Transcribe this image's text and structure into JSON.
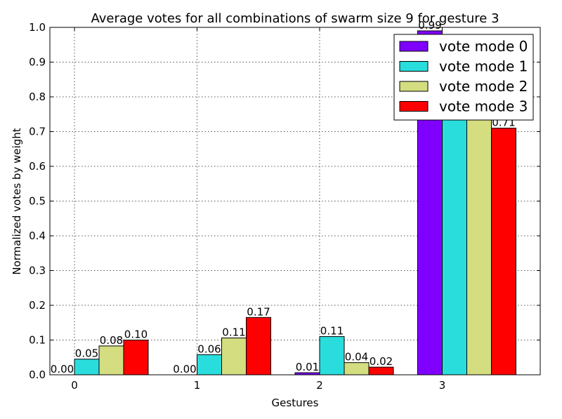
{
  "chart_data": {
    "type": "bar",
    "title": "Average votes for all combinations of swarm size 9 for gesture 3",
    "xlabel": "Gestures",
    "ylabel": "Normalized votes by weight",
    "categories": [
      "0",
      "1",
      "2",
      "3"
    ],
    "ylim": [
      0,
      1.0
    ],
    "yticks": [
      "0.0",
      "0.1",
      "0.2",
      "0.3",
      "0.4",
      "0.5",
      "0.6",
      "0.7",
      "0.8",
      "0.9",
      "1.0"
    ],
    "grid": true,
    "legend_position": "top-right",
    "series": [
      {
        "name": "vote mode 0",
        "color": "#8000ff",
        "values": [
          0.0,
          0.0,
          0.006,
          0.99
        ],
        "labels": [
          "0.00",
          "0.00",
          "0.01",
          "0.99"
        ]
      },
      {
        "name": "vote mode 1",
        "color": "#2adddd",
        "values": [
          0.045,
          0.058,
          0.11,
          0.87
        ],
        "labels": [
          "0.05",
          "0.06",
          "0.11",
          ""
        ]
      },
      {
        "name": "vote mode 2",
        "color": "#d4dd80",
        "values": [
          0.083,
          0.106,
          0.035,
          0.78
        ],
        "labels": [
          "0.08",
          "0.11",
          "0.04",
          ""
        ]
      },
      {
        "name": "vote mode 3",
        "color": "#ff0000",
        "values": [
          0.1,
          0.165,
          0.022,
          0.71
        ],
        "labels": [
          "0.10",
          "0.17",
          "0.02",
          "0.71"
        ]
      }
    ]
  }
}
